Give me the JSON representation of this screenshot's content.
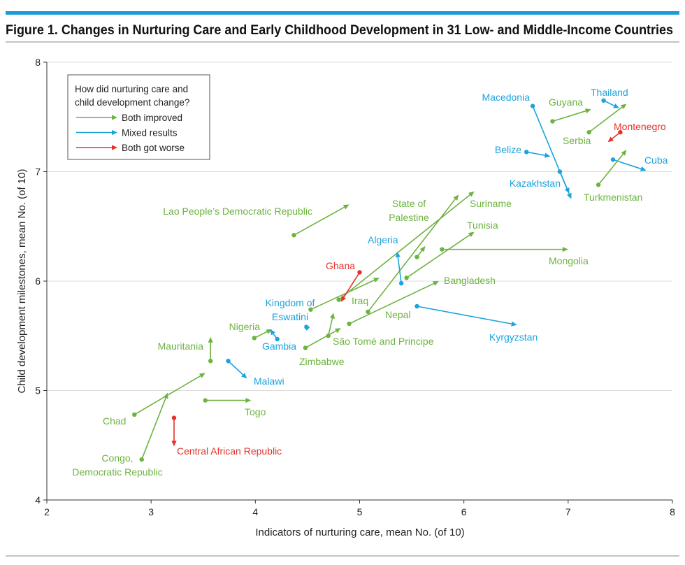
{
  "chart_data": {
    "type": "scatter",
    "subtype": "arrow",
    "title": "Figure 1. Changes in Nurturing Care and Early Childhood Development in 31 Low- and Middle-Income Countries",
    "xlabel": "Indicators of nurturing care, mean No. (of 10)",
    "ylabel": "Child development milestones, mean No. (of 10)",
    "xlim": [
      2,
      8
    ],
    "ylim": [
      4,
      8
    ],
    "xticks": [
      "2",
      "3",
      "4",
      "5",
      "6",
      "7",
      "8"
    ],
    "yticks": [
      "4",
      "5",
      "6",
      "7",
      "8"
    ],
    "grid": "horizontal",
    "legend": {
      "placement": "top-left",
      "title_lines": [
        "How did nurturing care and",
        "child development change?"
      ],
      "entries": [
        {
          "key": "improved",
          "label": "Both improved",
          "color": "#6db33f"
        },
        {
          "key": "mixed",
          "label": "Mixed results",
          "color": "#1ba3dd"
        },
        {
          "key": "worse",
          "label": "Both got worse",
          "color": "#e4322b"
        }
      ]
    },
    "series": [
      {
        "country": "Chad",
        "label_lines": [
          "Chad"
        ],
        "group": "improved",
        "start": [
          2.84,
          4.78
        ],
        "end": [
          3.52,
          5.16
        ]
      },
      {
        "country": "Congo, Democratic Republic",
        "label_lines": [
          "Congo,",
          "Democratic Republic"
        ],
        "group": "improved",
        "start": [
          2.91,
          4.37
        ],
        "end": [
          3.16,
          4.98
        ]
      },
      {
        "country": "Central African Republic",
        "label_lines": [
          "Central African Republic"
        ],
        "group": "worse",
        "start": [
          3.22,
          4.75
        ],
        "end": [
          3.22,
          4.49
        ]
      },
      {
        "country": "Togo",
        "label_lines": [
          "Togo"
        ],
        "group": "improved",
        "start": [
          3.52,
          4.91
        ],
        "end": [
          3.96,
          4.91
        ]
      },
      {
        "country": "Mauritania",
        "label_lines": [
          "Mauritania"
        ],
        "group": "improved",
        "start": [
          3.57,
          5.27
        ],
        "end": [
          3.57,
          5.49
        ]
      },
      {
        "country": "Malawi",
        "label_lines": [
          "Malawi"
        ],
        "group": "mixed",
        "start": [
          3.74,
          5.27
        ],
        "end": [
          3.92,
          5.11
        ]
      },
      {
        "country": "Nigeria",
        "label_lines": [
          "Nigeria"
        ],
        "group": "improved",
        "start": [
          3.99,
          5.48
        ],
        "end": [
          4.16,
          5.56
        ]
      },
      {
        "country": "Gambia",
        "label_lines": [
          "Gambia"
        ],
        "group": "mixed",
        "start": [
          4.21,
          5.47
        ],
        "end": [
          4.14,
          5.56
        ]
      },
      {
        "country": "Kingdom of Eswatini",
        "label_lines": [
          "Kingdom of",
          "Eswatini"
        ],
        "group": "mixed",
        "start": [
          4.49,
          5.58
        ],
        "end": [
          4.47,
          5.6
        ]
      },
      {
        "country": "Zimbabwe",
        "label_lines": [
          "Zimbabwe"
        ],
        "group": "improved",
        "start": [
          4.48,
          5.39
        ],
        "end": [
          4.82,
          5.57
        ]
      },
      {
        "country": "São Tomé and Principe",
        "label_lines": [
          "São Tomé and Principe"
        ],
        "group": "improved",
        "start": [
          4.7,
          5.5
        ],
        "end": [
          4.75,
          5.71
        ]
      },
      {
        "country": "Nepal",
        "label_lines": [
          "Nepal"
        ],
        "group": "improved",
        "start": [
          4.53,
          5.74
        ],
        "end": [
          5.19,
          6.03
        ]
      },
      {
        "country": "Bangladesh",
        "label_lines": [
          "Bangladesh"
        ],
        "group": "improved",
        "start": [
          4.9,
          5.61
        ],
        "end": [
          5.76,
          6.0
        ]
      },
      {
        "country": "Suriname",
        "label_lines": [
          "Suriname"
        ],
        "group": "improved",
        "start": [
          4.8,
          5.83
        ],
        "end": [
          6.1,
          6.82
        ]
      },
      {
        "country": "Iraq",
        "label_lines": [
          "Iraq"
        ],
        "group": "improved",
        "start": [
          5.08,
          5.72
        ],
        "end": [
          5.95,
          6.79
        ]
      },
      {
        "country": "State of Palestine",
        "label_lines": [
          "State of",
          "Palestine"
        ],
        "group": "improved",
        "start": [
          5.55,
          6.22
        ],
        "end": [
          5.63,
          6.32
        ]
      },
      {
        "country": "Tunisia",
        "label_lines": [
          "Tunisia"
        ],
        "group": "improved",
        "start": [
          5.45,
          6.03
        ],
        "end": [
          6.1,
          6.45
        ]
      },
      {
        "country": "Mongolia",
        "label_lines": [
          "Mongolia"
        ],
        "group": "improved",
        "start": [
          5.79,
          6.29
        ],
        "end": [
          7.0,
          6.29
        ]
      },
      {
        "country": "Algeria",
        "label_lines": [
          "Algeria"
        ],
        "group": "mixed",
        "start": [
          5.4,
          5.98
        ],
        "end": [
          5.36,
          6.27
        ]
      },
      {
        "country": "Ghana",
        "label_lines": [
          "Ghana"
        ],
        "group": "worse",
        "start": [
          5.0,
          6.08
        ],
        "end": [
          4.82,
          5.81
        ]
      },
      {
        "country": "Lao People's Democratic Republic",
        "label_lines": [
          "Lao People’s Democratic Republic"
        ],
        "group": "improved",
        "start": [
          4.37,
          6.42
        ],
        "end": [
          4.9,
          6.7
        ]
      },
      {
        "country": "Kyrgyzstan",
        "label_lines": [
          "Kyrgyzstan"
        ],
        "group": "mixed",
        "start": [
          5.55,
          5.77
        ],
        "end": [
          6.51,
          5.6
        ]
      },
      {
        "country": "Macedonia",
        "label_lines": [
          "Macedonia"
        ],
        "group": "mixed",
        "start": [
          6.66,
          7.6
        ],
        "end": [
          7.03,
          6.75
        ]
      },
      {
        "country": "Kazakhstan",
        "label_lines": [
          "Kazakhstan"
        ],
        "group": "mixed",
        "start": [
          6.92,
          7.0
        ],
        "end": [
          7.01,
          6.8
        ]
      },
      {
        "country": "Belize",
        "label_lines": [
          "Belize"
        ],
        "group": "mixed",
        "start": [
          6.6,
          7.18
        ],
        "end": [
          6.83,
          7.14
        ]
      },
      {
        "country": "Guyana",
        "label_lines": [
          "Guyana"
        ],
        "group": "improved",
        "start": [
          6.85,
          7.46
        ],
        "end": [
          7.22,
          7.57
        ]
      },
      {
        "country": "Thailand",
        "label_lines": [
          "Thailand"
        ],
        "group": "mixed",
        "start": [
          7.34,
          7.65
        ],
        "end": [
          7.49,
          7.58
        ]
      },
      {
        "country": "Serbia",
        "label_lines": [
          "Serbia"
        ],
        "group": "improved",
        "start": [
          7.2,
          7.36
        ],
        "end": [
          7.56,
          7.62
        ]
      },
      {
        "country": "Montenegro",
        "label_lines": [
          "Montenegro"
        ],
        "group": "worse",
        "start": [
          7.5,
          7.36
        ],
        "end": [
          7.38,
          7.27
        ]
      },
      {
        "country": "Cuba",
        "label_lines": [
          "Cuba"
        ],
        "group": "mixed",
        "start": [
          7.43,
          7.11
        ],
        "end": [
          7.75,
          7.01
        ]
      },
      {
        "country": "Turkmenistan",
        "label_lines": [
          "Turkmenistan"
        ],
        "group": "improved",
        "start": [
          7.29,
          6.88
        ],
        "end": [
          7.56,
          7.2
        ]
      }
    ]
  }
}
